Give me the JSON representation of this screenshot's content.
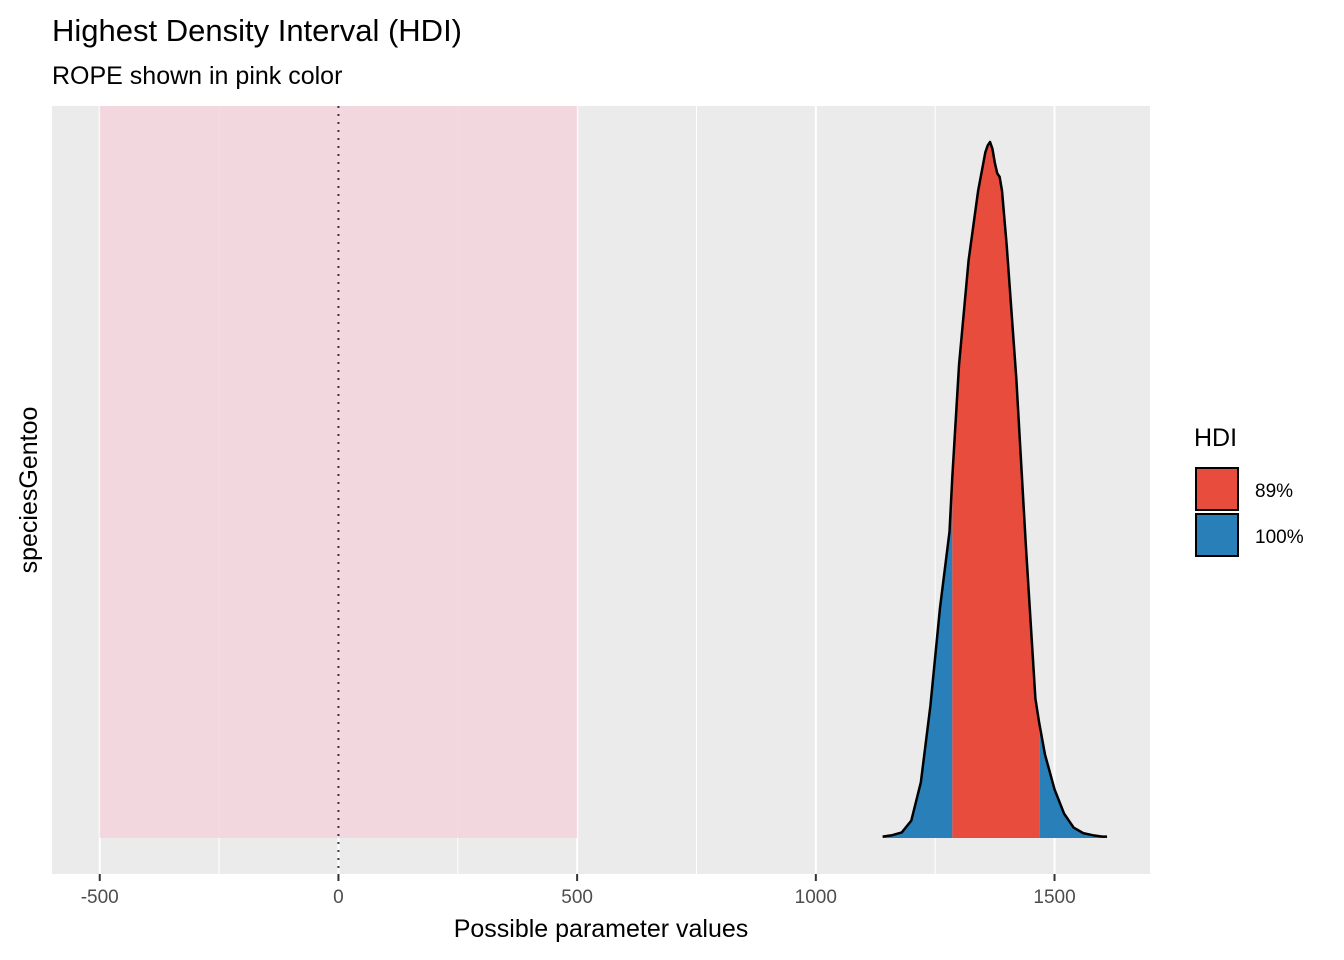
{
  "chart_data": {
    "type": "area",
    "title": "Highest Density Interval (HDI)",
    "subtitle": "ROPE shown in pink color",
    "xlabel": "Possible parameter values",
    "ylabel": "speciesGentoo",
    "xlim": [
      -600,
      1700
    ],
    "x_ticks": [
      -500,
      0,
      500,
      1000,
      1500
    ],
    "x_tick_labels": [
      "-500",
      "0",
      "500",
      "1000",
      "1500"
    ],
    "grid": true,
    "rope": {
      "range": [
        -500,
        500
      ],
      "color": "#f4d4dc"
    },
    "reference_line": {
      "x": 0,
      "style": "dotted"
    },
    "legend": {
      "title": "HDI",
      "position": "right",
      "items": [
        {
          "label": "89%",
          "color": "#e74c3c"
        },
        {
          "label": "100%",
          "color": "#2980b9"
        }
      ]
    },
    "hdi_89": [
      1286,
      1468
    ],
    "distribution_range": [
      1140,
      1610
    ],
    "density": {
      "x": [
        1140,
        1160,
        1180,
        1200,
        1220,
        1240,
        1260,
        1280,
        1286,
        1300,
        1320,
        1340,
        1355,
        1360,
        1365,
        1370,
        1375,
        1380,
        1385,
        1390,
        1400,
        1420,
        1440,
        1460,
        1468,
        1480,
        1500,
        1520,
        1540,
        1560,
        1580,
        1600,
        1610
      ],
      "y": [
        0.002,
        0.004,
        0.008,
        0.025,
        0.08,
        0.19,
        0.33,
        0.44,
        0.52,
        0.68,
        0.83,
        0.93,
        0.985,
        0.995,
        1.0,
        0.99,
        0.97,
        0.955,
        0.95,
        0.93,
        0.85,
        0.66,
        0.42,
        0.2,
        0.165,
        0.12,
        0.07,
        0.035,
        0.015,
        0.007,
        0.004,
        0.002,
        0.002
      ]
    }
  }
}
